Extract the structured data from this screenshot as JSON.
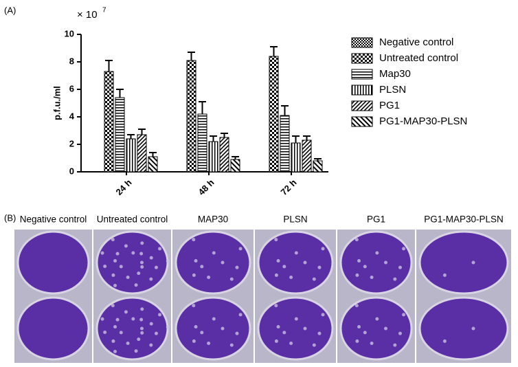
{
  "panel_a_label": "(A)",
  "chart_data": {
    "type": "bar",
    "y_label": "p.f.u./ml",
    "scale_label": "× 10",
    "scale_exponent": "7",
    "categories": [
      "24 h",
      "48 h",
      "72 h"
    ],
    "ylim": [
      0,
      10
    ],
    "yticks": [
      0,
      2,
      4,
      6,
      8,
      10
    ],
    "legend": "right",
    "series": [
      {
        "name": "Negative control",
        "color": "#000",
        "pattern": "checker-fine",
        "values": [
          0,
          0,
          0
        ],
        "errors": [
          0,
          0,
          0
        ]
      },
      {
        "name": "Untreated control",
        "color": "#000",
        "pattern": "checker-coarse",
        "values": [
          7.3,
          8.1,
          8.4
        ],
        "errors": [
          0.8,
          0.6,
          0.7
        ]
      },
      {
        "name": "Map30",
        "color": "#000",
        "pattern": "hlines",
        "values": [
          5.4,
          4.2,
          4.1
        ],
        "errors": [
          0.6,
          0.9,
          0.7
        ]
      },
      {
        "name": "PLSN",
        "color": "#000",
        "pattern": "vlines",
        "values": [
          2.4,
          2.2,
          2.1
        ],
        "errors": [
          0.3,
          0.4,
          0.5
        ]
      },
      {
        "name": "PG1",
        "color": "#000",
        "pattern": "diag",
        "values": [
          2.7,
          2.5,
          2.3
        ],
        "errors": [
          0.4,
          0.3,
          0.3
        ]
      },
      {
        "name": "PG1-MAP30-PLSN",
        "color": "#000",
        "pattern": "diag-back",
        "values": [
          1.1,
          0.9,
          0.8
        ],
        "errors": [
          0.3,
          0.2,
          0.15
        ]
      }
    ]
  },
  "panel_b": {
    "label": "(B)",
    "columns": [
      "Negative control",
      "Untreated control",
      "MAP30",
      "PLSN",
      "PG1",
      "PG1-MAP30-PLSN"
    ]
  }
}
